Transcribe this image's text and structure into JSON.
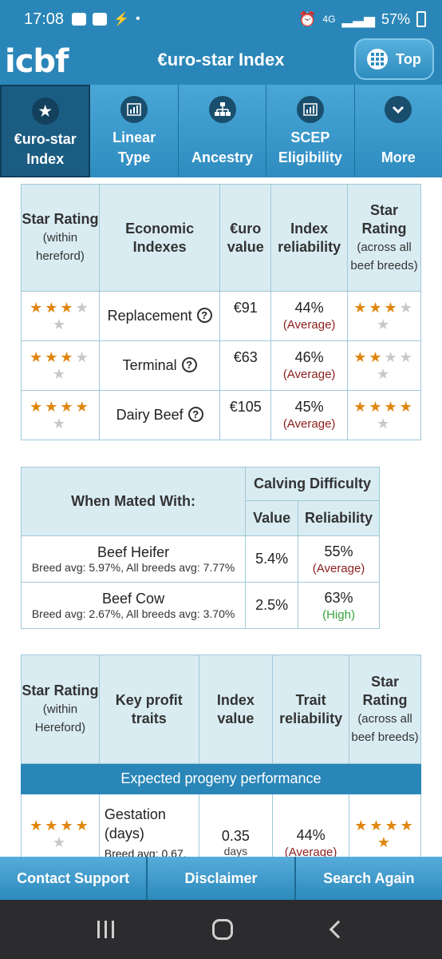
{
  "status_bar": {
    "time": "17:08",
    "battery": "57%",
    "network": "4G"
  },
  "app": {
    "logo": "icbf",
    "title": "€uro-star Index",
    "top_button": "Top"
  },
  "nav_tabs": [
    {
      "label_line1": "€uro-star",
      "label_line2": "Index",
      "icon": "star-icon",
      "active": true
    },
    {
      "label_line1": "Linear",
      "label_line2": "Type",
      "icon": "bar-chart-icon",
      "active": false
    },
    {
      "label_line1": "",
      "label_line2": "Ancestry",
      "icon": "tree-icon",
      "active": false
    },
    {
      "label_line1": "SCEP",
      "label_line2": "Eligibility",
      "icon": "bar-chart-icon",
      "active": false
    },
    {
      "label_line1": "",
      "label_line2": "More",
      "icon": "chevron-down-icon",
      "active": false
    }
  ],
  "economic_table": {
    "headers": {
      "star_within": "Star Rating",
      "star_within_sub": "(within hereford)",
      "indexes": "Economic Indexes",
      "euro": "€uro value",
      "reliability": "Index reliability",
      "star_across": "Star Rating",
      "star_across_sub": "(across all beef breeds)"
    },
    "rows": [
      {
        "stars_within": 3,
        "name": "Replacement",
        "value": "€91",
        "reliability": "44%",
        "quality": "(Average)",
        "stars_across": 3
      },
      {
        "stars_within": 3,
        "name": "Terminal",
        "value": "€63",
        "reliability": "46%",
        "quality": "(Average)",
        "stars_across": 2
      },
      {
        "stars_within": 4,
        "name": "Dairy Beef",
        "value": "€105",
        "reliability": "45%",
        "quality": "(Average)",
        "stars_across": 4
      }
    ]
  },
  "calving_table": {
    "headers": {
      "mated": "When Mated With:",
      "group": "Calving Difficulty",
      "value": "Value",
      "reliability": "Reliability"
    },
    "rows": [
      {
        "name": "Beef Heifer",
        "avg": "Breed avg: 5.97%, All breeds avg: 7.77%",
        "value": "5.4%",
        "reliability": "55%",
        "quality": "(Average)"
      },
      {
        "name": "Beef Cow",
        "avg": "Breed avg: 2.67%, All breeds avg: 3.70%",
        "value": "2.5%",
        "reliability": "63%",
        "quality": "(High)"
      }
    ]
  },
  "profit_table": {
    "headers": {
      "star_within": "Star Rating",
      "star_within_sub": "(within Hereford)",
      "traits": "Key profit traits",
      "index": "Index value",
      "reliability": "Trait reliability",
      "star_across": "Star Rating",
      "star_across_sub": "(across all beef breeds)"
    },
    "banner": "Expected progeny performance",
    "rows": [
      {
        "stars_within": 4,
        "trait": "Gestation (days)",
        "avg": "Breed avg: 0.67,",
        "value": "0.35",
        "unit": "days",
        "reliability": "44%",
        "quality": "(Average)",
        "stars_across": 5
      }
    ]
  },
  "actions": {
    "contact": "Contact Support",
    "disclaimer": "Disclaimer",
    "search": "Search Again"
  }
}
